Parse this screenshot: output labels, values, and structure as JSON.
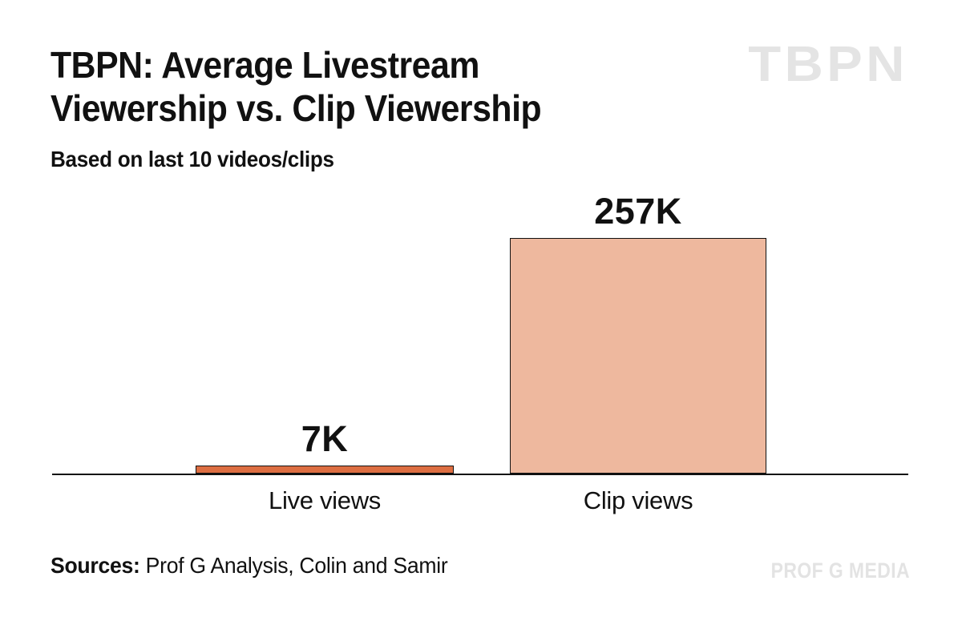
{
  "header": {
    "title_line1": "TBPN: Average Livestream",
    "title_line2": "Viewership vs. Clip Viewership",
    "subtitle": "Based on last 10 videos/clips",
    "brand_watermark": "TBPN"
  },
  "footer": {
    "sources_label": "Sources:",
    "sources_text": "Prof G Analysis, Colin and Samir",
    "brand_watermark": "PROF G MEDIA"
  },
  "chart_data": {
    "type": "bar",
    "title": "TBPN: Average Livestream Viewership vs. Clip Viewership",
    "subtitle": "Based on last 10 videos/clips",
    "categories": [
      "Live views",
      "Clip views"
    ],
    "values": [
      7000,
      257000
    ],
    "value_labels": [
      "7K",
      "257K"
    ],
    "bar_colors": [
      "#dd6e42",
      "#eeb89e"
    ],
    "ylim": [
      0,
      257000
    ],
    "grid": false,
    "legend": false,
    "y_axis_shown": false,
    "x_axis_shown": true
  },
  "colors": {
    "background": "#ffffff",
    "text": "#111111",
    "axis": "#111111",
    "bar_border": "#111111",
    "live_bar": "#dd6e42",
    "clip_bar": "#eeb89e",
    "watermark": "#e4e4e4"
  }
}
